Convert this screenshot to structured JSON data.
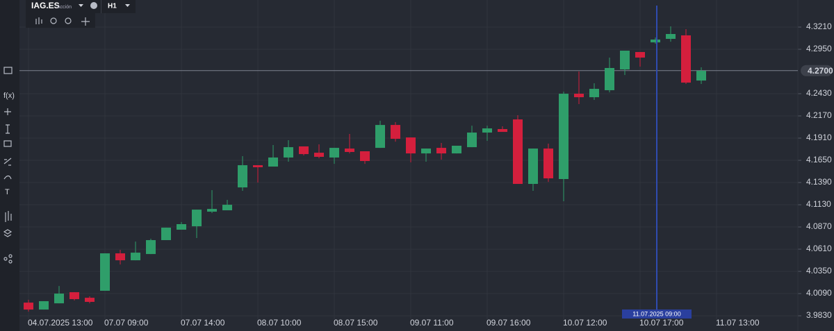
{
  "header": {
    "symbol": "IAG.ES",
    "instrument_type": "Acción",
    "timeframe": "H1"
  },
  "toolbar": {
    "function_label": "f(x)",
    "text_tool": "T"
  },
  "chart_data": {
    "type": "candlestick",
    "categories": [
      "04.07.2025 13:00",
      null,
      null,
      null,
      null,
      "07.07 09:00",
      null,
      null,
      null,
      null,
      "07.07 14:00",
      null,
      null,
      null,
      null,
      "08.07 10:00",
      null,
      null,
      null,
      null,
      "08.07 15:00",
      null,
      null,
      null,
      null,
      "09.07 11:00",
      null,
      null,
      null,
      null,
      "09.07 16:00",
      null,
      null,
      null,
      null,
      "10.07 12:00",
      null,
      null,
      null,
      null,
      "10.07 17:00",
      null,
      null,
      null,
      null,
      "11.07 13:00"
    ],
    "open": [
      3.9984,
      3.9903,
      3.9976,
      4.0106,
      4.0041,
      4.0123,
      4.0561,
      4.048,
      4.0553,
      4.0716,
      4.0838,
      4.0878,
      4.1049,
      4.1065,
      4.1333,
      4.1593,
      4.1577,
      4.1683,
      4.1813,
      4.1739,
      4.1683,
      4.1788,
      4.1756,
      4.1796,
      4.2064,
      4.1918,
      4.1731,
      4.1796,
      4.1731,
      4.1804,
      4.1975,
      4.2016,
      4.2129,
      4.1374,
      4.1788,
      4.1431,
      4.243,
      4.2389,
      4.2471,
      4.2714,
      4.2918,
      4.3031,
      4.3072,
      4.3113,
      4.2584,
      null
    ],
    "high": [
      4.0017,
      4.0001,
      4.0179,
      4.0106,
      4.0058,
      4.0561,
      4.0602,
      4.0699,
      4.0732,
      4.0862,
      4.0927,
      4.1073,
      4.1301,
      4.1187,
      4.1699,
      4.1593,
      4.1829,
      4.1886,
      4.1813,
      4.1837,
      4.1796,
      4.1959,
      4.1756,
      4.2113,
      4.2097,
      4.1918,
      4.1788,
      4.1853,
      4.1821,
      4.2056,
      4.2056,
      4.2048,
      4.2178,
      4.1788,
      4.1845,
      4.2454,
      4.269,
      4.2552,
      4.2853,
      4.2934,
      4.2918,
      4.3088,
      4.3218,
      4.3186,
      4.2739,
      null
    ],
    "low": [
      3.9879,
      3.9903,
      3.9976,
      4.0009,
      3.9976,
      4.0123,
      4.0431,
      4.048,
      4.0553,
      4.0716,
      4.0838,
      4.074,
      4.1033,
      4.1065,
      4.1293,
      4.139,
      4.1577,
      4.1634,
      4.1707,
      4.1674,
      4.1609,
      4.1731,
      4.1609,
      4.1796,
      4.1869,
      4.1626,
      4.1634,
      4.1658,
      4.1731,
      4.1804,
      4.1878,
      4.1983,
      4.1374,
      4.1293,
      4.1398,
      4.1171,
      4.2308,
      4.2357,
      4.2446,
      4.2649,
      4.2747,
      4.3015,
      4.3039,
      4.2544,
      4.2544,
      null
    ],
    "close": [
      3.9903,
      4.0001,
      4.009,
      4.0025,
      3.9993,
      4.0561,
      4.048,
      4.0569,
      4.0716,
      4.0862,
      4.0903,
      4.1073,
      4.1081,
      4.113,
      4.1593,
      4.1569,
      4.1683,
      4.1804,
      4.1723,
      4.1691,
      4.1796,
      4.1748,
      4.1642,
      4.2064,
      4.1902,
      4.1731,
      4.1788,
      4.1731,
      4.1821,
      4.1975,
      4.2024,
      4.1983,
      4.1374,
      4.1788,
      4.1439,
      4.243,
      4.2389,
      4.2487,
      4.2731,
      4.2934,
      4.2853,
      4.3064,
      4.3129,
      4.256,
      4.2698,
      null
    ],
    "up_color": "#2f9e6a",
    "down_color": "#d41f3d",
    "ylim": [
      3.979,
      4.3527
    ],
    "yticks": [
      {
        "value": 4.321,
        "label": "4.3210"
      },
      {
        "value": 4.295,
        "label": "4.2950"
      },
      {
        "value": 4.243,
        "label": "4.2430"
      },
      {
        "value": 4.217,
        "label": "4.2170"
      },
      {
        "value": 4.191,
        "label": "4.1910"
      },
      {
        "value": 4.165,
        "label": "4.1650"
      },
      {
        "value": 4.139,
        "label": "4.1390"
      },
      {
        "value": 4.113,
        "label": "4.1130"
      },
      {
        "value": 4.087,
        "label": "4.0870"
      },
      {
        "value": 4.061,
        "label": "4.0610"
      },
      {
        "value": 4.035,
        "label": "4.0350"
      },
      {
        "value": 4.009,
        "label": "4.0090"
      },
      {
        "value": 3.983,
        "label": "3.9830"
      }
    ],
    "grid": true,
    "current_price": {
      "value": 4.27,
      "label": "4.2700"
    },
    "crosshair": {
      "label": "11.07.2025 09:00"
    }
  }
}
